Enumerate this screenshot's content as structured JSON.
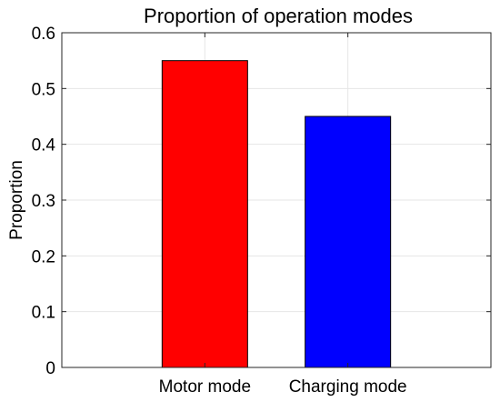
{
  "chart_data": {
    "type": "bar",
    "title": "Proportion of operation modes",
    "xlabel": "",
    "ylabel": "Proportion",
    "categories": [
      "Motor mode",
      "Charging mode"
    ],
    "values": [
      0.55,
      0.45
    ],
    "bar_colors": [
      "#ff0000",
      "#0000ff"
    ],
    "ylim": [
      0,
      0.6
    ],
    "yticks": [
      "0",
      "0.1",
      "0.2",
      "0.3",
      "0.4",
      "0.5",
      "0.6"
    ],
    "grid": true
  }
}
